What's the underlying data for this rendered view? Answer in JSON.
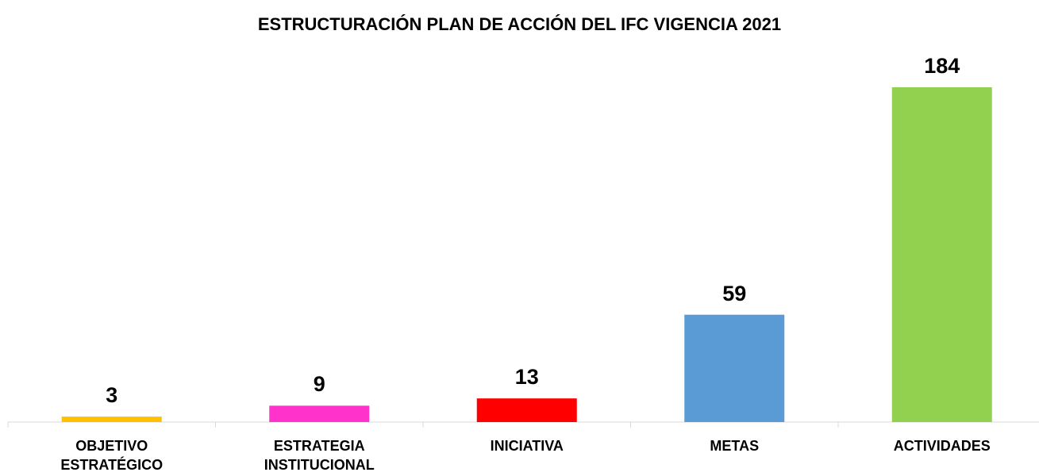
{
  "chart_data": {
    "type": "bar",
    "title": "ESTRUCTURACIÓN PLAN DE ACCIÓN DEL IFC VIGENCIA 2021",
    "categories": [
      "OBJETIVO ESTRATÉGICO",
      "ESTRATEGIA INSTITUCIONAL",
      "INICIATIVA",
      "METAS",
      "ACTIVIDADES"
    ],
    "values": [
      3,
      9,
      13,
      59,
      184
    ],
    "colors": [
      "#ffc000",
      "#ff33cc",
      "#ff0000",
      "#5b9bd5",
      "#92d050"
    ]
  }
}
